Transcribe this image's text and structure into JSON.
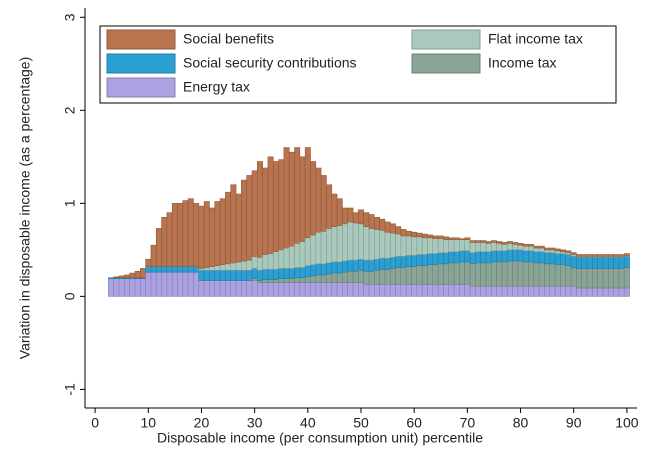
{
  "chart_data": {
    "type": "stacked-bar",
    "x_label": "Disposable income (per consumption unit) percentile",
    "y_label": "Variation in disposable income (as a percentage)",
    "x": [
      1,
      2,
      3,
      4,
      5,
      6,
      7,
      8,
      9,
      10,
      11,
      12,
      13,
      14,
      15,
      16,
      17,
      18,
      19,
      20,
      21,
      22,
      23,
      24,
      25,
      26,
      27,
      28,
      29,
      30,
      31,
      32,
      33,
      34,
      35,
      36,
      37,
      38,
      39,
      40,
      41,
      42,
      43,
      44,
      45,
      46,
      47,
      48,
      49,
      50,
      51,
      52,
      53,
      54,
      55,
      56,
      57,
      58,
      59,
      60,
      61,
      62,
      63,
      64,
      65,
      66,
      67,
      68,
      69,
      70,
      71,
      72,
      73,
      74,
      75,
      76,
      77,
      78,
      79,
      80,
      81,
      82,
      83,
      84,
      85,
      86,
      87,
      88,
      89,
      90,
      91,
      92,
      93,
      94,
      95,
      96,
      97,
      98,
      99,
      100
    ],
    "xlim": [
      -1.9,
      101.9
    ],
    "xticks": [
      0,
      10,
      20,
      30,
      40,
      50,
      60,
      70,
      80,
      90,
      100
    ],
    "ylim": [
      -1.2,
      3.1
    ],
    "yticks": [
      -1,
      0,
      1,
      2,
      3
    ],
    "series": [
      {
        "name": "Energy tax",
        "color": "#aba2e2",
        "values": [
          0,
          0,
          0.19,
          0.19,
          0.19,
          0.19,
          0.19,
          0.19,
          0.19,
          0.26,
          0.26,
          0.26,
          0.26,
          0.26,
          0.26,
          0.26,
          0.26,
          0.26,
          0.26,
          0.17,
          0.17,
          0.17,
          0.17,
          0.17,
          0.17,
          0.17,
          0.17,
          0.17,
          0.17,
          0.17,
          0.15,
          0.15,
          0.15,
          0.15,
          0.15,
          0.15,
          0.15,
          0.15,
          0.15,
          0.15,
          0.15,
          0.15,
          0.15,
          0.15,
          0.15,
          0.15,
          0.15,
          0.15,
          0.15,
          0.15,
          0.13,
          0.13,
          0.13,
          0.13,
          0.13,
          0.13,
          0.13,
          0.13,
          0.13,
          0.13,
          0.13,
          0.13,
          0.13,
          0.13,
          0.13,
          0.13,
          0.13,
          0.13,
          0.13,
          0.13,
          0.11,
          0.11,
          0.11,
          0.11,
          0.11,
          0.11,
          0.11,
          0.11,
          0.11,
          0.11,
          0.11,
          0.11,
          0.11,
          0.11,
          0.11,
          0.11,
          0.11,
          0.11,
          0.11,
          0.11,
          0.09,
          0.09,
          0.09,
          0.09,
          0.09,
          0.09,
          0.09,
          0.09,
          0.09,
          0.09
        ]
      },
      {
        "name": "Income tax",
        "color": "#8aa597",
        "values": [
          0,
          0,
          0,
          0,
          0,
          0,
          0,
          0,
          0,
          0,
          0,
          0,
          0,
          0,
          0,
          0,
          0,
          0,
          0,
          0,
          0,
          0,
          0,
          0,
          0,
          0,
          0,
          0,
          0,
          0.02,
          0.02,
          0.03,
          0.03,
          0.03,
          0.04,
          0.04,
          0.04,
          0.05,
          0.05,
          0.06,
          0.07,
          0.08,
          0.08,
          0.09,
          0.1,
          0.1,
          0.11,
          0.12,
          0.12,
          0.13,
          0.14,
          0.14,
          0.15,
          0.16,
          0.16,
          0.17,
          0.18,
          0.18,
          0.19,
          0.19,
          0.2,
          0.2,
          0.21,
          0.21,
          0.22,
          0.22,
          0.23,
          0.23,
          0.24,
          0.24,
          0.24,
          0.25,
          0.25,
          0.25,
          0.26,
          0.26,
          0.26,
          0.27,
          0.27,
          0.27,
          0.26,
          0.26,
          0.25,
          0.25,
          0.24,
          0.24,
          0.23,
          0.23,
          0.22,
          0.2,
          0.21,
          0.21,
          0.21,
          0.21,
          0.21,
          0.21,
          0.21,
          0.21,
          0.21,
          0.22
        ]
      },
      {
        "name": "Social security contributions",
        "color": "#2b9fd1",
        "values": [
          0,
          0,
          0.01,
          0.01,
          0.01,
          0.01,
          0.01,
          0.01,
          0.01,
          0.06,
          0.06,
          0.06,
          0.06,
          0.06,
          0.06,
          0.06,
          0.06,
          0.06,
          0.06,
          0.11,
          0.11,
          0.11,
          0.11,
          0.11,
          0.11,
          0.11,
          0.11,
          0.11,
          0.11,
          0.11,
          0.11,
          0.11,
          0.11,
          0.11,
          0.11,
          0.11,
          0.11,
          0.11,
          0.11,
          0.12,
          0.12,
          0.12,
          0.12,
          0.12,
          0.12,
          0.12,
          0.12,
          0.12,
          0.12,
          0.12,
          0.12,
          0.12,
          0.12,
          0.12,
          0.12,
          0.12,
          0.12,
          0.12,
          0.12,
          0.12,
          0.12,
          0.12,
          0.12,
          0.12,
          0.12,
          0.12,
          0.12,
          0.12,
          0.12,
          0.12,
          0.12,
          0.12,
          0.12,
          0.12,
          0.12,
          0.12,
          0.12,
          0.12,
          0.12,
          0.12,
          0.12,
          0.12,
          0.12,
          0.12,
          0.12,
          0.12,
          0.12,
          0.12,
          0.12,
          0.12,
          0.12,
          0.12,
          0.12,
          0.12,
          0.12,
          0.12,
          0.12,
          0.12,
          0.12,
          0.12
        ]
      },
      {
        "name": "Flat income tax",
        "color": "#a9c9bd",
        "values": [
          0,
          0,
          0,
          0,
          0,
          0,
          0,
          0,
          0,
          0,
          0,
          0,
          0,
          0,
          0,
          0,
          0,
          0,
          0,
          0.02,
          0.03,
          0.04,
          0.05,
          0.06,
          0.07,
          0.08,
          0.09,
          0.1,
          0.11,
          0.13,
          0.14,
          0.16,
          0.17,
          0.19,
          0.2,
          0.22,
          0.24,
          0.26,
          0.28,
          0.3,
          0.32,
          0.34,
          0.35,
          0.37,
          0.38,
          0.39,
          0.4,
          0.41,
          0.4,
          0.38,
          0.36,
          0.34,
          0.32,
          0.3,
          0.28,
          0.26,
          0.24,
          0.22,
          0.21,
          0.2,
          0.19,
          0.18,
          0.17,
          0.16,
          0.15,
          0.14,
          0.13,
          0.13,
          0.12,
          0.12,
          0.11,
          0.1,
          0.1,
          0.09,
          0.09,
          0.08,
          0.07,
          0.07,
          0.06,
          0.05,
          0.05,
          0.05,
          0.04,
          0.04,
          0.03,
          0.03,
          0.03,
          0.02,
          0.02,
          0.02,
          0.01,
          0.01,
          0.01,
          0.01,
          0.01,
          0.01,
          0.01,
          0.01,
          0.01,
          0.01
        ]
      },
      {
        "name": "Social benefits",
        "color": "#b8734f",
        "values": [
          0,
          0,
          0,
          0.01,
          0.02,
          0.03,
          0.05,
          0.07,
          0.1,
          0.08,
          0.23,
          0.41,
          0.53,
          0.58,
          0.68,
          0.68,
          0.71,
          0.73,
          0.68,
          0.67,
          0.71,
          0.63,
          0.69,
          0.71,
          0.77,
          0.84,
          0.73,
          0.87,
          0.91,
          0.92,
          1.03,
          0.93,
          1.04,
          0.97,
          0.97,
          1.08,
          1.01,
          1.03,
          0.91,
          0.97,
          0.79,
          0.69,
          0.6,
          0.47,
          0.35,
          0.29,
          0.17,
          0.15,
          0.11,
          0.15,
          0.15,
          0.15,
          0.13,
          0.12,
          0.11,
          0.1,
          0.08,
          0.07,
          0.05,
          0.05,
          0.04,
          0.04,
          0.03,
          0.03,
          0.03,
          0.03,
          0.02,
          0.02,
          0.01,
          0.02,
          0.02,
          0.02,
          0.02,
          0.02,
          0.02,
          0.02,
          0.02,
          0.02,
          0.02,
          0.02,
          0.02,
          0.02,
          0.02,
          0.02,
          0.02,
          0.02,
          0.02,
          0.02,
          0.02,
          0.02,
          0.02,
          0.02,
          0.02,
          0.02,
          0.02,
          0.02,
          0.02,
          0.02,
          0.02,
          0.02
        ]
      }
    ]
  }
}
